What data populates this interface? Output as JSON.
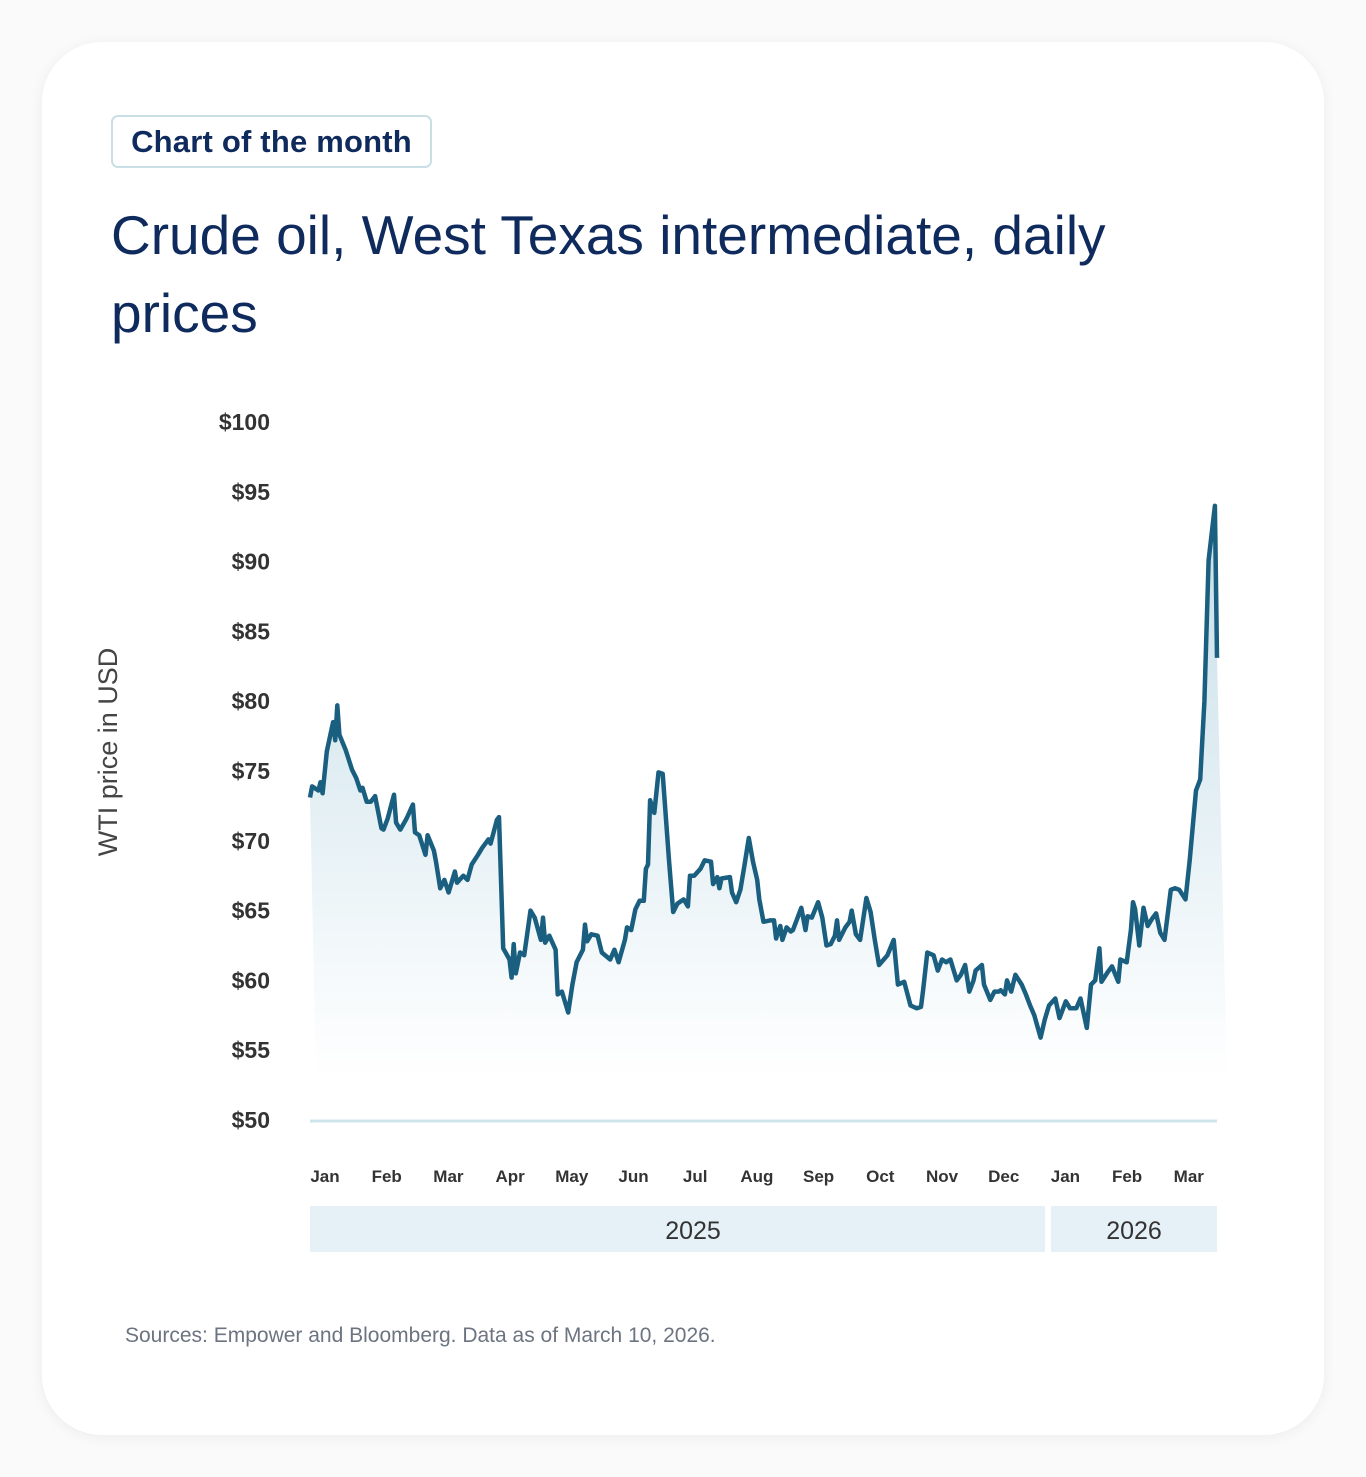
{
  "badge": "Chart of the month",
  "title": "Crude oil, West Texas intermediate, daily prices",
  "sources": "Sources: Empower and Bloomberg. Data as of March 10, 2026.",
  "colors": {
    "line": "#1a5f80",
    "fill_top": "#c2dce7",
    "year_band": "#e6f0f7",
    "baseline": "#cde4ec",
    "title": "#0f2a5c"
  },
  "chart_data": {
    "type": "area",
    "title": "Crude oil, West Texas intermediate, daily prices",
    "ylabel": "WTI price in USD",
    "xlabel": "",
    "ylim": [
      50,
      100
    ],
    "yticks": [
      "$100",
      "$95",
      "$90",
      "$85",
      "$80",
      "$75",
      "$70",
      "$65",
      "$60",
      "$55",
      "$50"
    ],
    "ytick_values": [
      100,
      95,
      90,
      85,
      80,
      75,
      70,
      65,
      60,
      55,
      50
    ],
    "month_labels": [
      "Jan",
      "Feb",
      "Mar",
      "Apr",
      "May",
      "Jun",
      "Jul",
      "Aug",
      "Sep",
      "Oct",
      "Nov",
      "Dec",
      "Jan",
      "Feb",
      "Mar"
    ],
    "year_labels": [
      "2025",
      "2026"
    ],
    "grid": false,
    "series": [
      {
        "points": [
          [
            "2025-01-02",
            73.1
          ],
          [
            "2025-01-03",
            73.9
          ],
          [
            "2025-01-06",
            73.6
          ],
          [
            "2025-01-07",
            74.2
          ],
          [
            "2025-01-08",
            73.4
          ],
          [
            "2025-01-10",
            76.4
          ],
          [
            "2025-01-13",
            78.5
          ],
          [
            "2025-01-14",
            77.2
          ],
          [
            "2025-01-15",
            79.7
          ],
          [
            "2025-01-16",
            77.6
          ],
          [
            "2025-01-19",
            76.5
          ],
          [
            "2025-01-22",
            75.1
          ],
          [
            "2025-01-24",
            74.5
          ],
          [
            "2025-01-26",
            73.6
          ],
          [
            "2025-01-27",
            73.8
          ],
          [
            "2025-01-29",
            72.8
          ],
          [
            "2025-01-31",
            72.8
          ],
          [
            "2025-02-02",
            73.2
          ],
          [
            "2025-02-05",
            70.9
          ],
          [
            "2025-02-06",
            70.8
          ],
          [
            "2025-02-08",
            71.6
          ],
          [
            "2025-02-11",
            73.3
          ],
          [
            "2025-02-12",
            71.3
          ],
          [
            "2025-02-14",
            70.8
          ],
          [
            "2025-02-17",
            71.6
          ],
          [
            "2025-02-20",
            72.6
          ],
          [
            "2025-02-21",
            70.6
          ],
          [
            "2025-02-23",
            70.4
          ],
          [
            "2025-02-26",
            69.0
          ],
          [
            "2025-02-27",
            70.4
          ],
          [
            "2025-03-02",
            69.3
          ],
          [
            "2025-03-03",
            68.5
          ],
          [
            "2025-03-05",
            66.6
          ],
          [
            "2025-03-07",
            67.2
          ],
          [
            "2025-03-09",
            66.3
          ],
          [
            "2025-03-12",
            67.8
          ],
          [
            "2025-03-13",
            67.0
          ],
          [
            "2025-03-16",
            67.5
          ],
          [
            "2025-03-18",
            67.2
          ],
          [
            "2025-03-20",
            68.3
          ],
          [
            "2025-03-23",
            69.0
          ],
          [
            "2025-03-25",
            69.5
          ],
          [
            "2025-03-28",
            70.1
          ],
          [
            "2025-03-29",
            69.8
          ],
          [
            "2025-04-01",
            71.5
          ],
          [
            "2025-04-02",
            71.7
          ],
          [
            "2025-04-04",
            62.3
          ],
          [
            "2025-04-07",
            61.5
          ],
          [
            "2025-04-08",
            60.2
          ],
          [
            "2025-04-09",
            62.6
          ],
          [
            "2025-04-10",
            60.5
          ],
          [
            "2025-04-12",
            62.0
          ],
          [
            "2025-04-14",
            61.8
          ],
          [
            "2025-04-17",
            65.0
          ],
          [
            "2025-04-19",
            64.5
          ],
          [
            "2025-04-22",
            62.9
          ],
          [
            "2025-04-23",
            64.5
          ],
          [
            "2025-04-24",
            62.7
          ],
          [
            "2025-04-26",
            63.2
          ],
          [
            "2025-04-29",
            62.2
          ],
          [
            "2025-04-30",
            59.0
          ],
          [
            "2025-05-02",
            59.2
          ],
          [
            "2025-05-05",
            57.7
          ],
          [
            "2025-05-07",
            59.7
          ],
          [
            "2025-05-09",
            61.3
          ],
          [
            "2025-05-12",
            62.2
          ],
          [
            "2025-05-13",
            64.0
          ],
          [
            "2025-05-14",
            62.8
          ],
          [
            "2025-05-16",
            63.3
          ],
          [
            "2025-05-19",
            63.2
          ],
          [
            "2025-05-21",
            62.0
          ],
          [
            "2025-05-25",
            61.5
          ],
          [
            "2025-05-27",
            62.2
          ],
          [
            "2025-05-29",
            61.3
          ],
          [
            "2025-06-01",
            62.9
          ],
          [
            "2025-06-02",
            63.8
          ],
          [
            "2025-06-04",
            63.6
          ],
          [
            "2025-06-06",
            65.1
          ],
          [
            "2025-06-08",
            65.7
          ],
          [
            "2025-06-10",
            65.7
          ],
          [
            "2025-06-11",
            68.0
          ],
          [
            "2025-06-12",
            68.3
          ],
          [
            "2025-06-13",
            72.9
          ],
          [
            "2025-06-15",
            72.0
          ],
          [
            "2025-06-17",
            74.9
          ],
          [
            "2025-06-19",
            74.8
          ],
          [
            "2025-06-22",
            68.6
          ],
          [
            "2025-06-24",
            64.9
          ],
          [
            "2025-06-26",
            65.5
          ],
          [
            "2025-06-29",
            65.8
          ],
          [
            "2025-07-01",
            65.3
          ],
          [
            "2025-07-02",
            67.5
          ],
          [
            "2025-07-04",
            67.5
          ],
          [
            "2025-07-07",
            68.0
          ],
          [
            "2025-07-09",
            68.6
          ],
          [
            "2025-07-12",
            68.5
          ],
          [
            "2025-07-13",
            66.9
          ],
          [
            "2025-07-15",
            67.4
          ],
          [
            "2025-07-16",
            66.6
          ],
          [
            "2025-07-17",
            67.3
          ],
          [
            "2025-07-21",
            67.4
          ],
          [
            "2025-07-22",
            66.3
          ],
          [
            "2025-07-24",
            65.6
          ],
          [
            "2025-07-26",
            66.5
          ],
          [
            "2025-07-28",
            68.3
          ],
          [
            "2025-07-30",
            70.2
          ],
          [
            "2025-08-01",
            68.5
          ],
          [
            "2025-08-03",
            67.2
          ],
          [
            "2025-08-04",
            65.8
          ],
          [
            "2025-08-06",
            64.2
          ],
          [
            "2025-08-09",
            64.3
          ],
          [
            "2025-08-11",
            64.3
          ],
          [
            "2025-08-12",
            63.0
          ],
          [
            "2025-08-14",
            63.9
          ],
          [
            "2025-08-15",
            62.9
          ],
          [
            "2025-08-17",
            63.8
          ],
          [
            "2025-08-19",
            63.5
          ],
          [
            "2025-08-20",
            63.6
          ],
          [
            "2025-08-22",
            64.4
          ],
          [
            "2025-08-24",
            65.2
          ],
          [
            "2025-08-26",
            63.6
          ],
          [
            "2025-08-27",
            64.6
          ],
          [
            "2025-08-29",
            64.5
          ],
          [
            "2025-09-01",
            65.6
          ],
          [
            "2025-09-03",
            64.5
          ],
          [
            "2025-09-05",
            62.5
          ],
          [
            "2025-09-07",
            62.6
          ],
          [
            "2025-09-09",
            63.2
          ],
          [
            "2025-09-10",
            64.3
          ],
          [
            "2025-09-11",
            62.9
          ],
          [
            "2025-09-14",
            63.8
          ],
          [
            "2025-09-16",
            64.2
          ],
          [
            "2025-09-17",
            65.0
          ],
          [
            "2025-09-19",
            63.3
          ],
          [
            "2025-09-21",
            62.9
          ],
          [
            "2025-09-24",
            65.9
          ],
          [
            "2025-09-26",
            64.9
          ],
          [
            "2025-09-28",
            62.9
          ],
          [
            "2025-09-30",
            61.1
          ],
          [
            "2025-10-04",
            61.8
          ],
          [
            "2025-10-07",
            62.9
          ],
          [
            "2025-10-09",
            59.7
          ],
          [
            "2025-10-12",
            59.9
          ],
          [
            "2025-10-15",
            58.2
          ],
          [
            "2025-10-18",
            58.0
          ],
          [
            "2025-10-20",
            58.1
          ],
          [
            "2025-10-21",
            59.3
          ],
          [
            "2025-10-23",
            62.0
          ],
          [
            "2025-10-26",
            61.8
          ],
          [
            "2025-10-28",
            60.7
          ],
          [
            "2025-10-30",
            61.5
          ],
          [
            "2025-11-01",
            61.3
          ],
          [
            "2025-11-03",
            61.5
          ],
          [
            "2025-11-06",
            60.0
          ],
          [
            "2025-11-08",
            60.4
          ],
          [
            "2025-11-10",
            61.1
          ],
          [
            "2025-11-12",
            59.2
          ],
          [
            "2025-11-14",
            60.0
          ],
          [
            "2025-11-15",
            60.7
          ],
          [
            "2025-11-18",
            61.1
          ],
          [
            "2025-11-19",
            59.7
          ],
          [
            "2025-11-22",
            58.6
          ],
          [
            "2025-11-24",
            59.2
          ],
          [
            "2025-11-26",
            59.2
          ],
          [
            "2025-11-27",
            59.3
          ],
          [
            "2025-11-29",
            59.0
          ],
          [
            "2025-11-30",
            60.0
          ],
          [
            "2025-12-02",
            59.2
          ],
          [
            "2025-12-04",
            60.4
          ],
          [
            "2025-12-07",
            59.7
          ],
          [
            "2025-12-09",
            59.0
          ],
          [
            "2025-12-11",
            58.2
          ],
          [
            "2025-12-13",
            57.5
          ],
          [
            "2025-12-16",
            55.9
          ],
          [
            "2025-12-18",
            57.2
          ],
          [
            "2025-12-20",
            58.2
          ],
          [
            "2025-12-23",
            58.7
          ],
          [
            "2025-12-25",
            57.3
          ],
          [
            "2025-12-28",
            58.5
          ],
          [
            "2025-12-30",
            58.0
          ],
          [
            "2026-01-02",
            58.0
          ],
          [
            "2026-01-04",
            58.7
          ],
          [
            "2026-01-07",
            56.6
          ],
          [
            "2026-01-09",
            59.7
          ],
          [
            "2026-01-11",
            60.0
          ],
          [
            "2026-01-13",
            62.3
          ],
          [
            "2026-01-14",
            59.9
          ],
          [
            "2026-01-17",
            60.6
          ],
          [
            "2026-01-19",
            61.0
          ],
          [
            "2026-01-22",
            59.9
          ],
          [
            "2026-01-23",
            61.5
          ],
          [
            "2026-01-26",
            61.3
          ],
          [
            "2026-01-28",
            63.6
          ],
          [
            "2026-01-29",
            65.6
          ],
          [
            "2026-01-30",
            65.1
          ],
          [
            "2026-02-01",
            62.5
          ],
          [
            "2026-02-03",
            65.2
          ],
          [
            "2026-02-05",
            63.9
          ],
          [
            "2026-02-07",
            64.4
          ],
          [
            "2026-02-09",
            64.8
          ],
          [
            "2026-02-11",
            63.4
          ],
          [
            "2026-02-13",
            62.9
          ],
          [
            "2026-02-16",
            66.5
          ],
          [
            "2026-02-18",
            66.6
          ],
          [
            "2026-02-20",
            66.5
          ],
          [
            "2026-02-23",
            65.8
          ],
          [
            "2026-02-25",
            68.6
          ],
          [
            "2026-02-28",
            73.6
          ],
          [
            "2026-03-02",
            74.4
          ],
          [
            "2026-03-04",
            80.0
          ],
          [
            "2026-03-06",
            90.1
          ],
          [
            "2026-03-09",
            94.0
          ],
          [
            "2026-03-10",
            83.1
          ]
        ]
      }
    ]
  }
}
